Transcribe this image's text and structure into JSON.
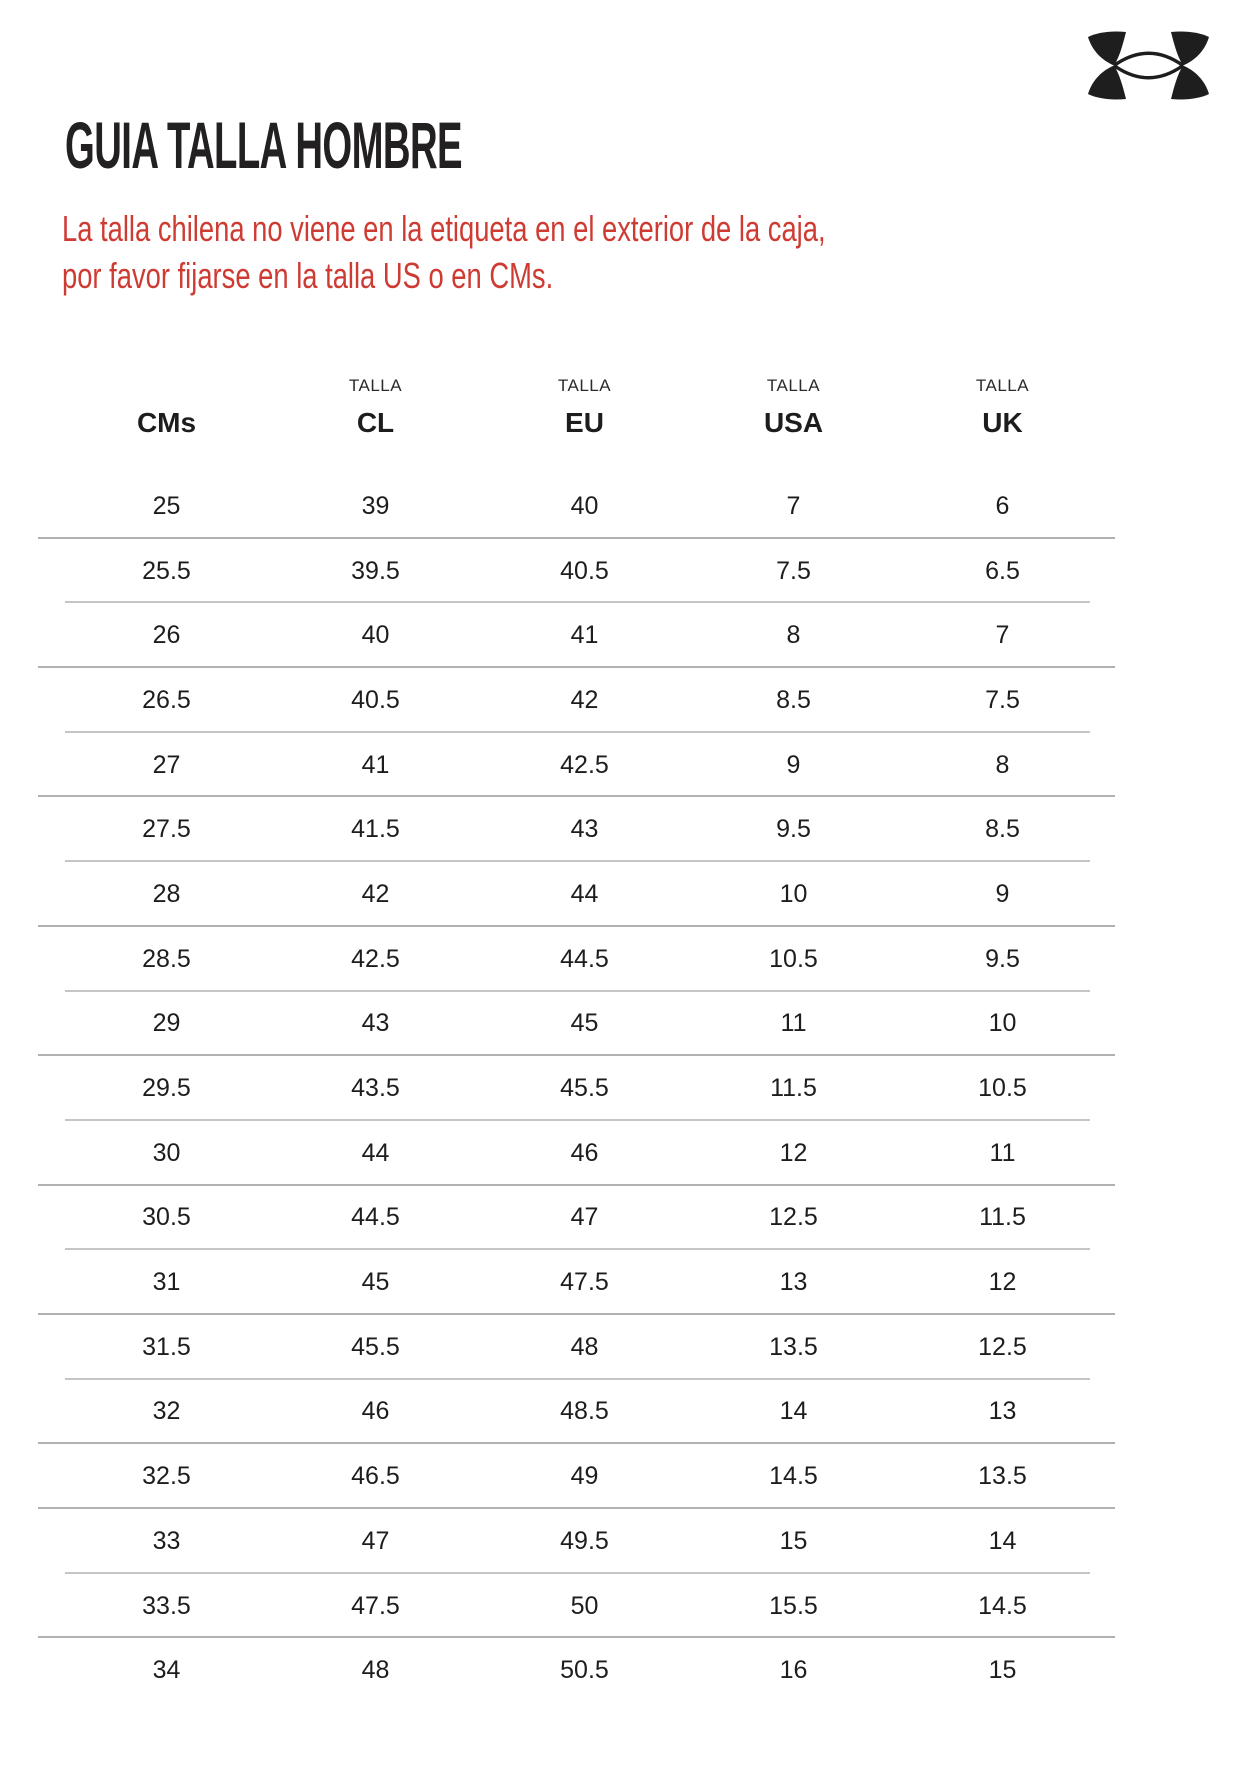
{
  "logo": {
    "brand": "Under Armour",
    "color": "#1e1e1e"
  },
  "title": "GUIA TALLA HOMBRE",
  "notice": {
    "line1": "La talla chilena no viene en la etiqueta en el exterior de la caja,",
    "line2": "por favor fijarse en la talla US o en CMs.",
    "color": "#ce3b33"
  },
  "table": {
    "columns": [
      {
        "top": "",
        "label": "CMs"
      },
      {
        "top": "TALLA",
        "label": "CL"
      },
      {
        "top": "TALLA",
        "label": "EU"
      },
      {
        "top": "TALLA",
        "label": "USA"
      },
      {
        "top": "TALLA",
        "label": "UK"
      }
    ],
    "rows": [
      [
        "25",
        "39",
        "40",
        "7",
        "6"
      ],
      [
        "25.5",
        "39.5",
        "40.5",
        "7.5",
        "6.5"
      ],
      [
        "26",
        "40",
        "41",
        "8",
        "7"
      ],
      [
        "26.5",
        "40.5",
        "42",
        "8.5",
        "7.5"
      ],
      [
        "27",
        "41",
        "42.5",
        "9",
        "8"
      ],
      [
        "27.5",
        "41.5",
        "43",
        "9.5",
        "8.5"
      ],
      [
        "28",
        "42",
        "44",
        "10",
        "9"
      ],
      [
        "28.5",
        "42.5",
        "44.5",
        "10.5",
        "9.5"
      ],
      [
        "29",
        "43",
        "45",
        "11",
        "10"
      ],
      [
        "29.5",
        "43.5",
        "45.5",
        "11.5",
        "10.5"
      ],
      [
        "30",
        "44",
        "46",
        "12",
        "11"
      ],
      [
        "30.5",
        "44.5",
        "47",
        "12.5",
        "11.5"
      ],
      [
        "31",
        "45",
        "47.5",
        "13",
        "12"
      ],
      [
        "31.5",
        "45.5",
        "48",
        "13.5",
        "12.5"
      ],
      [
        "32",
        "46",
        "48.5",
        "14",
        "13"
      ],
      [
        "32.5",
        "46.5",
        "49",
        "14.5",
        "13.5"
      ],
      [
        "33",
        "47",
        "49.5",
        "15",
        "14"
      ],
      [
        "33.5",
        "47.5",
        "50",
        "15.5",
        "14.5"
      ],
      [
        "34",
        "48",
        "50.5",
        "16",
        "15"
      ]
    ]
  }
}
